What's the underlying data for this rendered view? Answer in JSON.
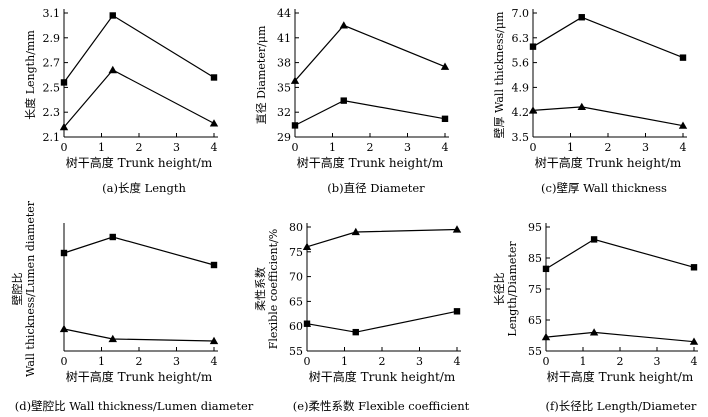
{
  "figure": {
    "background": "#ffffff",
    "ink": "#000000"
  },
  "chart_data": [
    {
      "id": "a",
      "type": "line",
      "caption": "(a)长度 Length",
      "ylabel": [
        "长度 Length/mm"
      ],
      "xlabel": "树干高度 Trunk height/m",
      "xlim": [
        0,
        4
      ],
      "ylim": [
        2.1,
        3.1
      ],
      "xticks": [
        "0",
        "1",
        "2",
        "3",
        "4"
      ],
      "xtick_values": [
        0,
        1,
        2,
        3,
        4
      ],
      "yticks": [
        "2.1",
        "2.3",
        "2.5",
        "2.7",
        "2.9",
        "3.1"
      ],
      "ytick_values": [
        2.1,
        2.3,
        2.5,
        2.7,
        2.9,
        3.1
      ],
      "series": [
        {
          "name": "square",
          "marker": "square",
          "x": [
            0,
            1.3,
            4
          ],
          "values": [
            2.54,
            3.08,
            2.58
          ]
        },
        {
          "name": "triangle",
          "marker": "triangle",
          "x": [
            0,
            1.3,
            4
          ],
          "values": [
            2.18,
            2.64,
            2.21
          ]
        }
      ]
    },
    {
      "id": "b",
      "type": "line",
      "caption": "(b)直径 Diameter",
      "ylabel": [
        "直径 Diameter/μm"
      ],
      "xlabel": "树干高度 Trunk height/m",
      "xlim": [
        0,
        4
      ],
      "ylim": [
        29,
        44
      ],
      "xticks": [
        "0",
        "1",
        "2",
        "3",
        "4"
      ],
      "xtick_values": [
        0,
        1,
        2,
        3,
        4
      ],
      "yticks": [
        "29",
        "32",
        "35",
        "38",
        "41",
        "44"
      ],
      "ytick_values": [
        29,
        32,
        35,
        38,
        41,
        44
      ],
      "series": [
        {
          "name": "triangle",
          "marker": "triangle",
          "x": [
            0,
            1.3,
            4
          ],
          "values": [
            35.8,
            42.5,
            37.5
          ]
        },
        {
          "name": "square",
          "marker": "square",
          "x": [
            0,
            1.3,
            4
          ],
          "values": [
            30.4,
            33.4,
            31.2
          ]
        }
      ]
    },
    {
      "id": "c",
      "type": "line",
      "caption": "(c)壁厚 Wall thickness",
      "ylabel": [
        "壁厚 Wall thickness/μm"
      ],
      "xlabel": "树干高度 Trunk height/m",
      "xlim": [
        0,
        4
      ],
      "ylim": [
        3.5,
        7.0
      ],
      "xticks": [
        "0",
        "1",
        "2",
        "3",
        "4"
      ],
      "xtick_values": [
        0,
        1,
        2,
        3,
        4
      ],
      "yticks": [
        "3.5",
        "4.2",
        "4.9",
        "5.6",
        "6.3",
        "7.0"
      ],
      "ytick_values": [
        3.5,
        4.2,
        4.9,
        5.6,
        6.3,
        7.0
      ],
      "series": [
        {
          "name": "square",
          "marker": "square",
          "x": [
            0,
            1.3,
            4
          ],
          "values": [
            6.05,
            6.88,
            5.74
          ]
        },
        {
          "name": "triangle",
          "marker": "triangle",
          "x": [
            0,
            1.3,
            4
          ],
          "values": [
            4.25,
            4.35,
            3.82
          ]
        }
      ]
    },
    {
      "id": "d",
      "type": "line",
      "caption": "(d)壁腔比 Wall thickness/Lumen diameter",
      "ylabel": [
        "壁腔比",
        "Wall thickness/Lumen diameter"
      ],
      "xlabel": "树干高度 Trunk height/m",
      "xlim": [
        0,
        4
      ],
      "ylim": [
        0.2,
        0.82
      ],
      "xticks": [
        "0",
        "1",
        "2",
        "3",
        "4"
      ],
      "xtick_values": [
        0,
        1,
        2,
        3,
        4
      ],
      "yticks": [],
      "ytick_values": [],
      "series": [
        {
          "name": "square",
          "marker": "square",
          "x": [
            0,
            1.3,
            4
          ],
          "values": [
            0.69,
            0.77,
            0.63
          ]
        },
        {
          "name": "triangle",
          "marker": "triangle",
          "x": [
            0,
            1.3,
            4
          ],
          "values": [
            0.31,
            0.26,
            0.25
          ]
        }
      ]
    },
    {
      "id": "e",
      "type": "line",
      "caption": "(e)柔性系数 Flexible coefficient",
      "ylabel": [
        "柔性系数",
        "Flexible coefficient/%"
      ],
      "xlabel": "树干高度 Trunk height/m",
      "xlim": [
        0,
        4
      ],
      "ylim": [
        55,
        80
      ],
      "xticks": [
        "0",
        "1",
        "2",
        "3",
        "4"
      ],
      "xtick_values": [
        0,
        1,
        2,
        3,
        4
      ],
      "yticks": [
        "55",
        "60",
        "65",
        "70",
        "75",
        "80"
      ],
      "ytick_values": [
        55,
        60,
        65,
        70,
        75,
        80
      ],
      "series": [
        {
          "name": "triangle",
          "marker": "triangle",
          "x": [
            0,
            1.3,
            4
          ],
          "values": [
            76.0,
            79.0,
            79.5
          ]
        },
        {
          "name": "square",
          "marker": "square",
          "x": [
            0,
            1.3,
            4
          ],
          "values": [
            60.5,
            58.8,
            63.0
          ]
        }
      ]
    },
    {
      "id": "f",
      "type": "line",
      "caption": "(f)长径比 Length/Diameter",
      "ylabel": [
        "长径比",
        "Length/Diameter"
      ],
      "xlabel": "树干高度 Trunk height/m",
      "xlim": [
        0,
        4
      ],
      "ylim": [
        55,
        95
      ],
      "xticks": [
        "0",
        "1",
        "2",
        "3",
        "4"
      ],
      "xtick_values": [
        0,
        1,
        2,
        3,
        4
      ],
      "yticks": [
        "55",
        "65",
        "75",
        "85",
        "95"
      ],
      "ytick_values": [
        55,
        65,
        75,
        85,
        95
      ],
      "series": [
        {
          "name": "square",
          "marker": "square",
          "x": [
            0,
            1.3,
            4
          ],
          "values": [
            81.5,
            91.0,
            82.0
          ]
        },
        {
          "name": "triangle",
          "marker": "triangle",
          "x": [
            0,
            1.3,
            4
          ],
          "values": [
            59.5,
            61.0,
            58.0
          ]
        }
      ]
    }
  ]
}
